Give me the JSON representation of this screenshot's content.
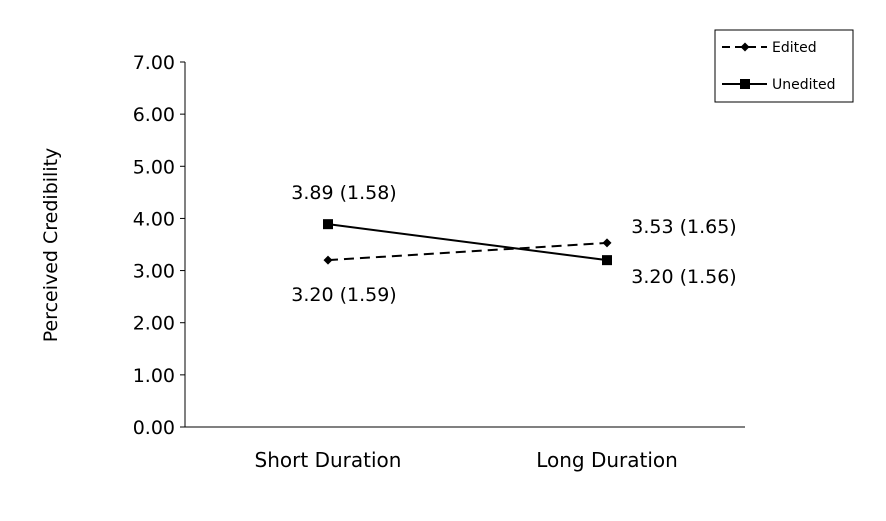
{
  "chart_data": {
    "type": "line",
    "title": "",
    "xlabel": "",
    "ylabel": "Perceived Credibility",
    "ylim": [
      0,
      7
    ],
    "yticks": [
      "0.00",
      "1.00",
      "2.00",
      "3.00",
      "4.00",
      "5.00",
      "6.00",
      "7.00"
    ],
    "categories": [
      "Short Duration",
      "Long Duration"
    ],
    "grid": false,
    "legend_position": "top-right",
    "series": [
      {
        "name": "Edited",
        "values": [
          3.2,
          3.53
        ],
        "labels": [
          "3.20 (1.59)",
          "3.53 (1.65)"
        ],
        "line_style": "dashed",
        "marker": "diamond",
        "color": "#000000"
      },
      {
        "name": "Unedited",
        "values": [
          3.89,
          3.2
        ],
        "labels": [
          "3.89 (1.58)",
          "3.20 (1.56)"
        ],
        "line_style": "solid",
        "marker": "square",
        "color": "#000000"
      }
    ]
  }
}
